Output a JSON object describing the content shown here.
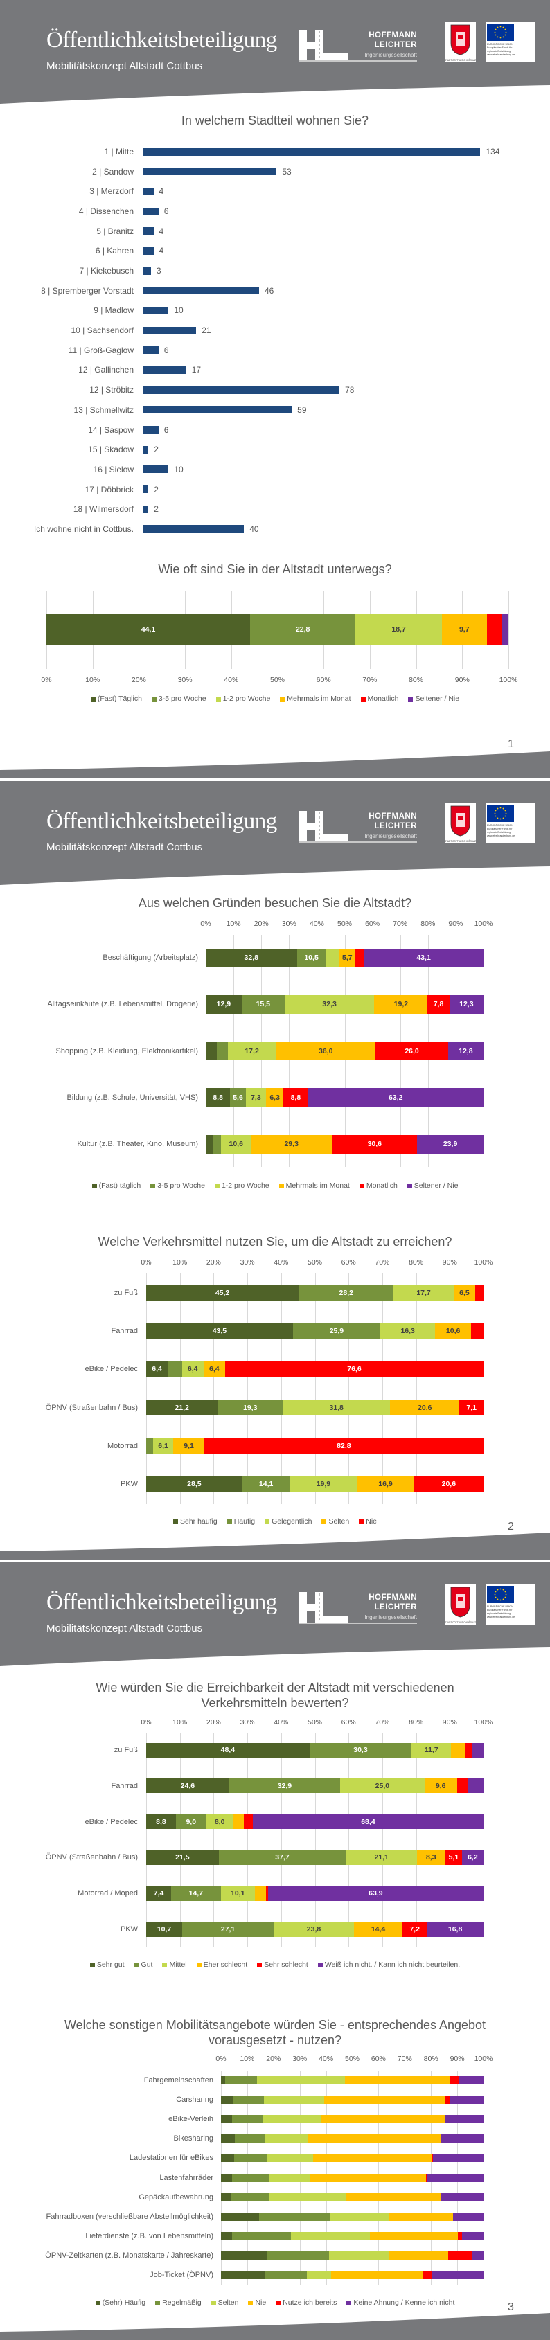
{
  "header": {
    "title": "Öffentlichkeitsbeteiligung",
    "subtitle": "Mobilitätskonzept Altstadt Cottbus",
    "company_line1": "HOFFMANN",
    "company_line2": "LEICHTER",
    "company_line3": "Ingenieurgesellschaft",
    "city_logo_text": "STADT COTTBUS CHÓŚEBUZ",
    "eu_logo_text": "EUROPÄISCHE UNION\nEuropäischer Fonds für\nregionale Entwicklung\nwww.efre.brandenburg.de",
    "band_color": "#77787b"
  },
  "pages": [
    {
      "page_number": "1"
    },
    {
      "page_number": "2"
    },
    {
      "page_number": "3"
    }
  ],
  "colors": {
    "bar_blue": "#1f497d",
    "dark_green": "#4f6228",
    "mid_green": "#77933c",
    "light_green": "#c3d94e",
    "yellow": "#ffc000",
    "red": "#ff0000",
    "purple": "#7030a0"
  },
  "chart_data": [
    {
      "type": "bar",
      "orientation": "horizontal",
      "title": "In welchem Stadtteil wohnen Sie?",
      "categories": [
        "1 | Mitte",
        "2 | Sandow",
        "3 | Merzdorf",
        "4 | Dissenchen",
        "5 | Branitz",
        "6 | Kahren",
        "7 | Kiekebusch",
        "8 | Spremberger Vorstadt",
        "9 | Madlow",
        "10 | Sachsendorf",
        "11 | Groß-Gaglow",
        "12 | Gallinchen",
        "12 | Ströbitz",
        "13 | Schmellwitz",
        "14 | Saspow",
        "15 | Skadow",
        "16 | Sielow",
        "17 | Döbbrick",
        "18 | Wilmersdorf",
        "Ich wohne nicht in Cottbus."
      ],
      "values": [
        134,
        53,
        4,
        6,
        4,
        4,
        3,
        46,
        10,
        21,
        6,
        17,
        78,
        59,
        6,
        2,
        10,
        2,
        2,
        40
      ],
      "xlim": [
        0,
        134
      ],
      "grid": false,
      "data_labels": true,
      "color": "#1f497d"
    },
    {
      "type": "bar",
      "orientation": "horizontal",
      "stacked": true,
      "title": "Wie oft sind Sie in der Altstadt unterwegs?",
      "categories": [
        ""
      ],
      "x_ticks": [
        "0%",
        "10%",
        "20%",
        "30%",
        "40%",
        "50%",
        "60%",
        "70%",
        "80%",
        "90%",
        "100%"
      ],
      "xlim": [
        0,
        100
      ],
      "ticks_position": "bottom",
      "grid": true,
      "legend": "bottom",
      "data_labels": true,
      "series": [
        {
          "name": "(Fast) Täglich",
          "values": [
            44.1
          ],
          "color": "#4f6228"
        },
        {
          "name": "3-5 pro Woche",
          "values": [
            22.8
          ],
          "color": "#77933c"
        },
        {
          "name": "1-2 pro Woche",
          "values": [
            18.7
          ],
          "color": "#c3d94e"
        },
        {
          "name": "Mehrmals im Monat",
          "values": [
            9.7
          ],
          "color": "#ffc000"
        },
        {
          "name": "Monatlich",
          "values": [
            3.2
          ],
          "color": "#ff0000"
        },
        {
          "name": "Seltener / Nie",
          "values": [
            1.5
          ],
          "color": "#7030a0"
        }
      ]
    },
    {
      "type": "bar",
      "orientation": "horizontal",
      "stacked": true,
      "title": "Aus welchen Gründen besuchen Sie die Altstadt?",
      "categories": [
        "Beschäftigung (Arbeitsplatz)",
        "Alltagseinkäufe (z.B. Lebensmittel, Drogerie)",
        "Shopping (z.B. Kleidung, Elektronikartikel)",
        "Bildung (z.B. Schule, Universität, VHS)",
        "Kultur (z.B. Theater, Kino, Museum)"
      ],
      "x_ticks": [
        "0%",
        "10%",
        "20%",
        "30%",
        "40%",
        "50%",
        "60%",
        "70%",
        "80%",
        "90%",
        "100%"
      ],
      "xlim": [
        0,
        100
      ],
      "ticks_position": "top",
      "grid": true,
      "legend": "bottom",
      "data_labels": true,
      "series": [
        {
          "name": "(Fast) täglich",
          "values": [
            32.8,
            12.9,
            4.0,
            8.8,
            2.8
          ],
          "color": "#4f6228"
        },
        {
          "name": "3-5 pro Woche",
          "values": [
            10.5,
            15.5,
            4.0,
            5.6,
            2.8
          ],
          "color": "#77933c"
        },
        {
          "name": "1-2 pro Woche",
          "values": [
            4.8,
            32.3,
            17.2,
            7.3,
            10.6
          ],
          "color": "#c3d94e"
        },
        {
          "name": "Mehrmals im Monat",
          "values": [
            5.7,
            19.2,
            36.0,
            6.3,
            29.3
          ],
          "color": "#ffc000"
        },
        {
          "name": "Monatlich",
          "values": [
            3.1,
            7.8,
            26.0,
            8.8,
            30.6
          ],
          "color": "#ff0000"
        },
        {
          "name": "Seltener / Nie",
          "values": [
            43.1,
            12.3,
            12.8,
            63.2,
            23.9
          ],
          "color": "#7030a0"
        }
      ]
    },
    {
      "type": "bar",
      "orientation": "horizontal",
      "stacked": true,
      "title": "Welche Verkehrsmittel nutzen Sie, um die Altstadt zu erreichen?",
      "categories": [
        "zu Fuß",
        "Fahrrad",
        "eBike / Pedelec",
        "ÖPNV (Straßenbahn / Bus)",
        "Motorrad",
        "PKW"
      ],
      "x_ticks": [
        "0%",
        "10%",
        "20%",
        "30%",
        "40%",
        "50%",
        "60%",
        "70%",
        "80%",
        "90%",
        "100%"
      ],
      "xlim": [
        0,
        100
      ],
      "ticks_position": "top",
      "grid": true,
      "legend": "bottom",
      "data_labels": true,
      "series": [
        {
          "name": "Sehr häufig",
          "values": [
            45.2,
            43.5,
            6.4,
            21.2,
            0,
            28.5
          ],
          "color": "#4f6228"
        },
        {
          "name": "Häufig",
          "values": [
            28.2,
            25.9,
            4.2,
            19.3,
            2.0,
            14.1
          ],
          "color": "#77933c"
        },
        {
          "name": "Gelegentlich",
          "values": [
            17.7,
            16.3,
            6.4,
            31.8,
            6.1,
            19.9
          ],
          "color": "#c3d94e"
        },
        {
          "name": "Selten",
          "values": [
            6.5,
            10.6,
            6.4,
            20.6,
            9.1,
            16.9
          ],
          "color": "#ffc000"
        },
        {
          "name": "Nie",
          "values": [
            2.4,
            3.7,
            76.6,
            7.1,
            82.8,
            20.6
          ],
          "color": "#ff0000"
        }
      ]
    },
    {
      "type": "bar",
      "orientation": "horizontal",
      "stacked": true,
      "title": "Wie würden Sie die Erreichbarkeit der Altstadt mit verschiedenen Verkehrsmitteln bewerten?",
      "categories": [
        "zu Fuß",
        "Fahrrad",
        "eBike / Pedelec",
        "ÖPNV (Straßenbahn / Bus)",
        "Motorrad / Moped",
        "PKW"
      ],
      "x_ticks": [
        "0%",
        "10%",
        "20%",
        "30%",
        "40%",
        "50%",
        "60%",
        "70%",
        "80%",
        "90%",
        "100%"
      ],
      "xlim": [
        0,
        100
      ],
      "ticks_position": "top",
      "grid": true,
      "legend": "bottom",
      "data_labels": true,
      "series": [
        {
          "name": "Sehr gut",
          "values": [
            48.4,
            24.6,
            8.8,
            21.5,
            7.4,
            10.7
          ],
          "color": "#4f6228"
        },
        {
          "name": "Gut",
          "values": [
            30.3,
            32.9,
            9.0,
            37.7,
            14.7,
            27.1
          ],
          "color": "#77933c"
        },
        {
          "name": "Mittel",
          "values": [
            11.7,
            25.0,
            8.0,
            21.1,
            10.1,
            23.8
          ],
          "color": "#c3d94e"
        },
        {
          "name": "Eher schlecht",
          "values": [
            4.0,
            9.6,
            3.2,
            8.3,
            3.4,
            14.4
          ],
          "color": "#ffc000"
        },
        {
          "name": "Sehr schlecht",
          "values": [
            2.4,
            3.4,
            2.6,
            5.1,
            0.5,
            7.2
          ],
          "color": "#ff0000"
        },
        {
          "name": "Weiß ich nicht. / Kann ich nicht beurteilen.",
          "values": [
            3.2,
            4.5,
            68.4,
            6.2,
            63.9,
            16.8
          ],
          "color": "#7030a0"
        }
      ]
    },
    {
      "type": "bar",
      "orientation": "horizontal",
      "stacked": true,
      "title": "Welche sonstigen Mobilitätsangebote würden Sie - entsprechendes Angebot vorausgesetzt - nutzen?",
      "categories": [
        "Fahrgemeinschaften",
        "Carsharing",
        "eBike-Verleih",
        "Bikesharing",
        "Ladestationen für eBikes",
        "Lastenfahrräder",
        "Gepäckaufbewahrung",
        "Fahrradboxen (verschließbare Abstellmöglichkeit)",
        "Lieferdienste (z.B. von Lebensmitteln)",
        "ÖPNV-Zeitkarten (z.B. Monatskarte / Jahreskarte)",
        "Job-Ticket (ÖPNV)"
      ],
      "x_ticks": [
        "0%",
        "10%",
        "20%",
        "30%",
        "40%",
        "50%",
        "60%",
        "70%",
        "80%",
        "90%",
        "100%"
      ],
      "xlim": [
        0,
        100
      ],
      "ticks_position": "top",
      "grid": true,
      "legend": "bottom",
      "data_labels": false,
      "series": [
        {
          "name": "(Sehr) Häufig",
          "values": [
            1.6,
            4.7,
            4.3,
            5.3,
            4.9,
            4.3,
            3.7,
            14.6,
            4.3,
            17.6,
            16.6
          ],
          "color": "#4f6228"
        },
        {
          "name": "Regelmäßig",
          "values": [
            12.2,
            11.7,
            11.5,
            11.5,
            12.5,
            13.9,
            14.5,
            27.1,
            22.3,
            23.6,
            16.0
          ],
          "color": "#77933c"
        },
        {
          "name": "Selten",
          "values": [
            33.3,
            23.0,
            22.3,
            16.4,
            17.6,
            15.8,
            29.5,
            22.1,
            30.2,
            23.0,
            9.4
          ],
          "color": "#c3d94e"
        },
        {
          "name": "Nie",
          "values": [
            40.1,
            46.0,
            47.5,
            50.4,
            45.5,
            44.2,
            35.9,
            24.7,
            33.4,
            22.4,
            34.9
          ],
          "color": "#ffc000"
        },
        {
          "name": "Nutze ich bereits",
          "values": [
            3.3,
            1.8,
            0,
            0.2,
            0.2,
            0.4,
            0.2,
            0,
            1.5,
            9.3,
            3.3
          ],
          "color": "#ff0000"
        },
        {
          "name": "Keine Ahnung / Kenne ich nicht",
          "values": [
            9.5,
            12.8,
            14.4,
            16.2,
            19.3,
            21.4,
            16.2,
            11.5,
            8.3,
            4.1,
            19.8
          ],
          "color": "#7030a0"
        }
      ]
    }
  ]
}
